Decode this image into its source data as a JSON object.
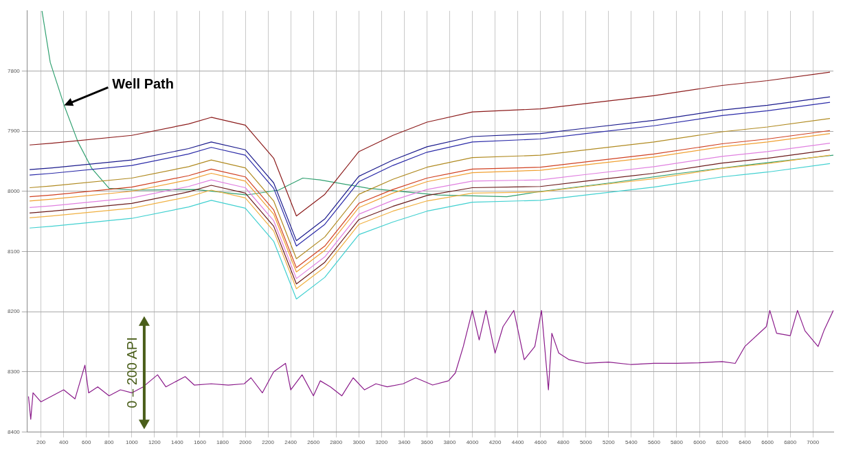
{
  "chart_data": {
    "type": "line",
    "annotations": [
      {
        "text": "Well Path",
        "x": 404,
        "y": 7857
      },
      "0 – 200 API"
    ],
    "x": [
      100,
      300,
      1000,
      1500,
      1700,
      2000,
      2250,
      2450,
      2700,
      3000,
      3300,
      3600,
      4000,
      4600,
      5000,
      5600,
      6200,
      6600,
      7150
    ],
    "series": [
      {
        "color": "#8b1a1a",
        "values": [
          7923,
          7920,
          7907,
          7888,
          7877,
          7890,
          7945,
          8041,
          8005,
          7934,
          7907,
          7885,
          7868,
          7863,
          7854,
          7841,
          7824,
          7816,
          7802
        ]
      },
      {
        "color": "#1a1a8c",
        "values": [
          7964,
          7961,
          7948,
          7929,
          7918,
          7931,
          7986,
          8082,
          8046,
          7975,
          7948,
          7926,
          7909,
          7904,
          7895,
          7882,
          7865,
          7857,
          7843
        ]
      },
      {
        "color": "#2a2aa8",
        "values": [
          7973,
          7970,
          7957,
          7938,
          7927,
          7940,
          7995,
          8091,
          8055,
          7984,
          7957,
          7935,
          7918,
          7913,
          7904,
          7891,
          7874,
          7866,
          7852
        ]
      },
      {
        "color": "#b08a20",
        "values": [
          7994,
          7991,
          7978,
          7959,
          7948,
          7961,
          8016,
          8112,
          8076,
          8005,
          7980,
          7960,
          7944,
          7940,
          7931,
          7918,
          7901,
          7893,
          7879
        ]
      },
      {
        "color": "#d04020",
        "values": [
          8009,
          8006,
          7993,
          7974,
          7963,
          7976,
          8031,
          8127,
          8091,
          8020,
          7997,
          7978,
          7963,
          7960,
          7951,
          7938,
          7921,
          7913,
          7899
        ]
      },
      {
        "color": "#f0a030",
        "values": [
          8016,
          8013,
          8000,
          7981,
          7970,
          7983,
          8038,
          8134,
          8098,
          8027,
          8003,
          7984,
          7969,
          7965,
          7956,
          7943,
          7926,
          7918,
          7904
        ]
      },
      {
        "color": "#e080e0",
        "values": [
          8027,
          8024,
          8011,
          7992,
          7981,
          7994,
          8049,
          8145,
          8109,
          8038,
          8015,
          7997,
          7983,
          7981,
          7972,
          7959,
          7942,
          7934,
          7920
        ]
      },
      {
        "color": "#6a1a1a",
        "values": [
          8036,
          8033,
          8020,
          8001,
          7990,
          8003,
          8058,
          8154,
          8118,
          8047,
          8025,
          8007,
          7994,
          7992,
          7983,
          7970,
          7953,
          7945,
          7931
        ]
      },
      {
        "color": "#f0b040",
        "values": [
          8044,
          8041,
          8028,
          8009,
          7998,
          8011,
          8066,
          8162,
          8126,
          8055,
          8033,
          8016,
          8003,
          8001,
          7992,
          7979,
          7962,
          7954,
          7940
        ]
      },
      {
        "color": "#40d0d0",
        "values": [
          8061,
          8058,
          8045,
          8026,
          8015,
          8028,
          8083,
          8179,
          8143,
          8072,
          8051,
          8033,
          8018,
          8015,
          8006,
          7993,
          7976,
          7968,
          7954
        ]
      },
      {
        "color": "#30a070",
        "x": [
          209,
          282,
          404,
          526,
          648,
          800,
          1015,
          1562,
          2019,
          2293,
          2506,
          2658,
          3085,
          3694,
          4304,
          4609,
          5218,
          5827,
          6436,
          7180
        ],
        "values": [
          7700,
          7786,
          7857,
          7918,
          7962,
          7995,
          7998,
          7997,
          8006,
          7998,
          7978,
          7981,
          7995,
          8006,
          8009,
          8000,
          7986,
          7970,
          7956,
          7940
        ]
      },
      {
        "color": "#8a1a8a",
        "x": [
          90,
          110,
          130,
          200,
          300,
          400,
          500,
          587,
          620,
          700,
          800,
          900,
          1000,
          1100,
          1227,
          1300,
          1470,
          1550,
          1700,
          1850,
          1990,
          2050,
          2150,
          2250,
          2354,
          2400,
          2500,
          2600,
          2660,
          2750,
          2850,
          2950,
          3050,
          3150,
          3250,
          3390,
          3500,
          3650,
          3790,
          3850,
          3920,
          4000,
          4060,
          4120,
          4200,
          4270,
          4365,
          4457,
          4550,
          4609,
          4670,
          4700,
          4761,
          4853,
          5000,
          5200,
          5400,
          5600,
          5800,
          6000,
          6200,
          6315,
          6400,
          6589,
          6620,
          6680,
          6800,
          6864,
          6930,
          7045,
          7100,
          7180
        ],
        "values": [
          8341,
          8379,
          8335,
          8350,
          8340,
          8330,
          8345,
          8289,
          8335,
          8325,
          8340,
          8330,
          8335,
          8325,
          8305,
          8325,
          8308,
          8322,
          8320,
          8322,
          8320,
          8310,
          8335,
          8300,
          8286,
          8330,
          8305,
          8340,
          8315,
          8325,
          8340,
          8310,
          8330,
          8320,
          8325,
          8320,
          8310,
          8322,
          8315,
          8302,
          8258,
          8198,
          8247,
          8198,
          8269,
          8225,
          8198,
          8280,
          8258,
          8198,
          8330,
          8236,
          8269,
          8280,
          8286,
          8284,
          8288,
          8286,
          8286,
          8285,
          8283,
          8286,
          8258,
          8225,
          8198,
          8236,
          8240,
          8198,
          8232,
          8258,
          8230,
          8198
        ]
      }
    ],
    "xlim": [
      80,
      7180
    ],
    "xticks": [
      200,
      400,
      600,
      800,
      1000,
      1200,
      1400,
      1600,
      1800,
      2000,
      2200,
      2400,
      2600,
      2800,
      3000,
      3200,
      3400,
      3600,
      3800,
      4000,
      4200,
      4400,
      4600,
      4800,
      5000,
      5200,
      5400,
      5600,
      5800,
      6000,
      6200,
      6400,
      6600,
      6800,
      7000
    ],
    "ylim": [
      8400,
      7700
    ],
    "yticks": [
      7800,
      7900,
      8000,
      8100,
      8200,
      8300,
      8400
    ],
    "grid": true,
    "legend": false,
    "marker": "none",
    "line_style": "solid"
  }
}
